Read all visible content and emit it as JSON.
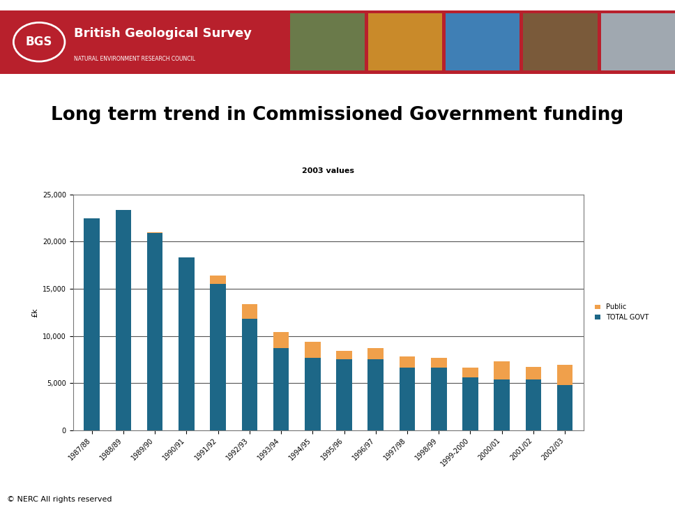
{
  "header": {
    "logo": "BGS",
    "organisation": "British Geological Survey",
    "council": "NATURAL ENVIRONMENT RESEARCH COUNCIL"
  },
  "footer": "© NERC All rights reserved",
  "chart_data": {
    "type": "bar",
    "stacked": true,
    "title": "Long term trend in Commissioned Government funding",
    "subtitle": "2003 values",
    "y_label": "£k",
    "categories": [
      "1987/88",
      "1988/89",
      "1989/90",
      "1990/91",
      "1991/92",
      "1992/93",
      "1993/94",
      "1994/95",
      "1995/96",
      "1996/97",
      "1997/98",
      "1998/99",
      "1999-2000",
      "2000/01",
      "2001/02",
      "2002/03"
    ],
    "series": [
      {
        "name": "TOTAL GOVT",
        "color": "#1d6787",
        "values": [
          22500,
          23400,
          20900,
          18300,
          15500,
          11800,
          8700,
          7700,
          7500,
          7500,
          6600,
          6600,
          5600,
          5400,
          5400,
          4800
        ]
      },
      {
        "name": "Public",
        "color": "#f0a04b",
        "values": [
          0,
          0,
          100,
          0,
          900,
          1600,
          1700,
          1700,
          900,
          1200,
          1200,
          1100,
          1000,
          1900,
          1300,
          2100
        ]
      }
    ],
    "ylim": [
      0,
      25000
    ],
    "yticks": [
      0,
      {
        "value": 5000,
        "label": "5,000"
      },
      {
        "value": 10000,
        "label": "10,000"
      },
      {
        "value": 15000,
        "label": "15,000"
      },
      {
        "value": 20000,
        "label": "20,000"
      },
      {
        "value": 25000,
        "label": "25,000"
      }
    ],
    "grid": true,
    "legend": "right"
  }
}
